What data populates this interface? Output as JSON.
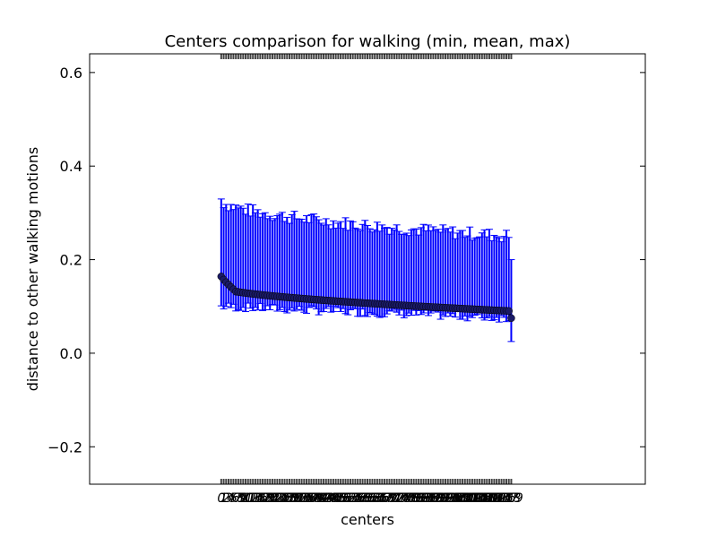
{
  "chart_data": {
    "type": "scatter",
    "title": "Centers comparison for walking (min, mean, max)",
    "xlabel": "centers",
    "ylabel": "distance to other walking motions",
    "ylim": [
      -0.28,
      0.64
    ],
    "yticks": [
      -0.2,
      0.0,
      0.2,
      0.4,
      0.6
    ],
    "ytick_labels": [
      "−0.2",
      "0.0",
      "0.2",
      "0.4",
      "0.6"
    ],
    "grid": false,
    "series_color": "#0000ff",
    "marker_color": "#1a1a66",
    "n_points": 120,
    "x_range": [
      0,
      119
    ],
    "xlim": [
      -54,
      174
    ],
    "mean_start": 0.14,
    "mean_end": 0.09,
    "mean_last": 0.075,
    "max_start": 0.33,
    "max_end": 0.25,
    "min_start": 0.1,
    "min_end": 0.075,
    "min_last": 0.025
  }
}
